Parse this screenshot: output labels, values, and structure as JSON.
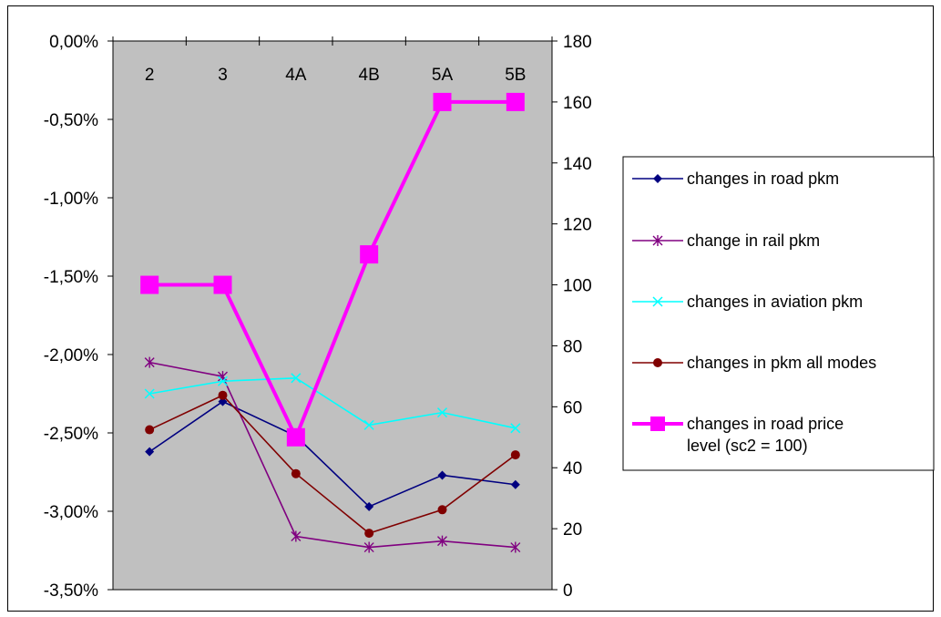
{
  "chart_data": {
    "type": "line",
    "categories": [
      "2",
      "3",
      "4A",
      "4B",
      "5A",
      "5B"
    ],
    "left_axis": {
      "ticks": [
        "0,00%",
        "-0,50%",
        "-1,00%",
        "-1,50%",
        "-2,00%",
        "-2,50%",
        "-3,00%",
        "-3,50%"
      ],
      "range": [
        -3.5,
        0
      ]
    },
    "right_axis": {
      "ticks": [
        "180",
        "160",
        "140",
        "120",
        "100",
        "80",
        "60",
        "40",
        "20",
        "0"
      ],
      "range": [
        0,
        180
      ]
    },
    "series": [
      {
        "name": "changes in road pkm",
        "axis": "left",
        "color": "#000080",
        "marker": "diamond",
        "values": [
          -2.62,
          -2.3,
          -2.52,
          -2.97,
          -2.77,
          -2.83
        ]
      },
      {
        "name": "change in rail pkm",
        "axis": "left",
        "color": "#800080",
        "marker": "star",
        "values": [
          -2.05,
          -2.14,
          -3.16,
          -3.23,
          -3.19,
          -3.23
        ]
      },
      {
        "name": "changes in aviation pkm",
        "axis": "left",
        "color": "#00ffff",
        "marker": "x",
        "values": [
          -2.25,
          -2.17,
          -2.15,
          -2.45,
          -2.37,
          -2.47
        ]
      },
      {
        "name": "changes in pkm all modes",
        "axis": "left",
        "color": "#800000",
        "marker": "circle",
        "values": [
          -2.48,
          -2.26,
          -2.76,
          -3.14,
          -2.99,
          -2.64
        ]
      },
      {
        "name": "changes in road price level (sc2 = 100)",
        "name_lines": [
          "changes in road price",
          "level (sc2 = 100)"
        ],
        "axis": "right",
        "color": "#ff00ff",
        "marker": "square",
        "values": [
          100,
          100,
          50,
          110,
          160,
          160
        ]
      }
    ],
    "plot_background": "#c0c0c0",
    "legend": "right",
    "grid": false
  }
}
